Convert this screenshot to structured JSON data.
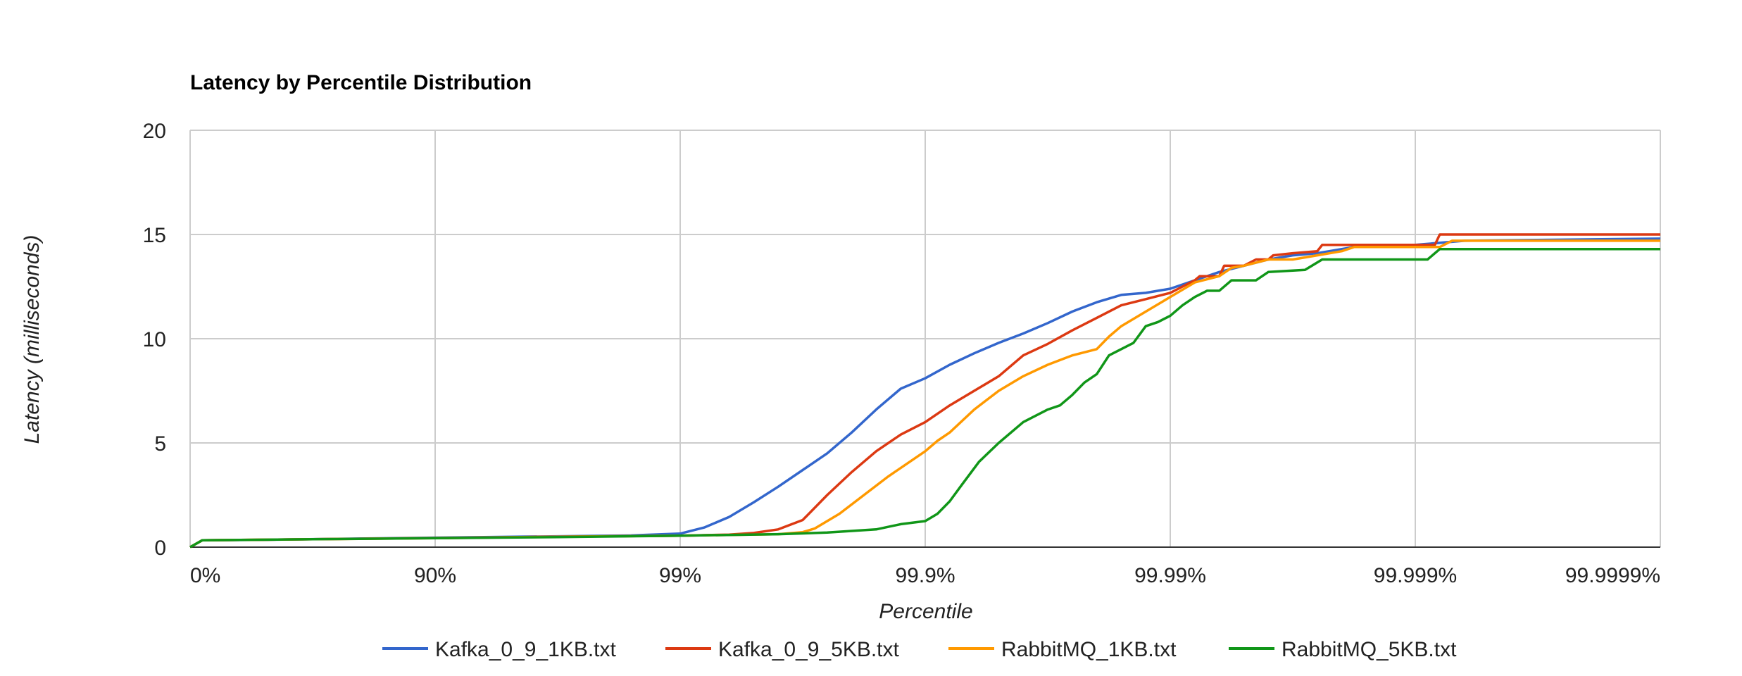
{
  "chart_data": {
    "type": "line",
    "title": "Latency by Percentile Distribution",
    "xlabel": "Percentile",
    "ylabel": "Latency (milliseconds)",
    "x_scale": "percentile (log of 1/(1-p))",
    "x_ticks": [
      "0%",
      "90%",
      "99%",
      "99.9%",
      "99.99%",
      "99.999%",
      "99.9999%"
    ],
    "y_ticks": [
      "0",
      "5",
      "10",
      "15",
      "20"
    ],
    "ylim": [
      0,
      20
    ],
    "grid": true,
    "legend_position": "bottom",
    "series": [
      {
        "name": "Kafka_0_9_1KB.txt",
        "color": "#3366cc",
        "points": [
          [
            0,
            0
          ],
          [
            0.05,
            0.33
          ],
          [
            0.3,
            0.35
          ],
          [
            0.6,
            0.4
          ],
          [
            0.9,
            0.44
          ],
          [
            1.2,
            0.48
          ],
          [
            1.5,
            0.52
          ],
          [
            1.8,
            0.56
          ],
          [
            2.0,
            0.65
          ],
          [
            2.1,
            0.95
          ],
          [
            2.2,
            1.45
          ],
          [
            2.3,
            2.15
          ],
          [
            2.4,
            2.9
          ],
          [
            2.5,
            3.7
          ],
          [
            2.6,
            4.5
          ],
          [
            2.7,
            5.5
          ],
          [
            2.8,
            6.6
          ],
          [
            2.9,
            7.6
          ],
          [
            3.0,
            8.1
          ],
          [
            3.1,
            8.75
          ],
          [
            3.2,
            9.3
          ],
          [
            3.3,
            9.8
          ],
          [
            3.4,
            10.25
          ],
          [
            3.5,
            10.75
          ],
          [
            3.6,
            11.3
          ],
          [
            3.7,
            11.75
          ],
          [
            3.8,
            12.1
          ],
          [
            3.9,
            12.2
          ],
          [
            4.0,
            12.4
          ],
          [
            4.1,
            12.8
          ],
          [
            4.2,
            13.2
          ],
          [
            4.3,
            13.5
          ],
          [
            4.4,
            13.8
          ],
          [
            4.5,
            14.0
          ],
          [
            4.6,
            14.1
          ],
          [
            4.7,
            14.3
          ],
          [
            4.8,
            14.5
          ],
          [
            5.0,
            14.5
          ],
          [
            5.2,
            14.7
          ],
          [
            6.0,
            14.8
          ]
        ]
      },
      {
        "name": "Kafka_0_9_5KB.txt",
        "color": "#dc3912",
        "points": [
          [
            0,
            0
          ],
          [
            0.05,
            0.33
          ],
          [
            0.5,
            0.38
          ],
          [
            1.0,
            0.44
          ],
          [
            1.5,
            0.5
          ],
          [
            2.0,
            0.55
          ],
          [
            2.2,
            0.6
          ],
          [
            2.3,
            0.68
          ],
          [
            2.4,
            0.85
          ],
          [
            2.5,
            1.3
          ],
          [
            2.6,
            2.5
          ],
          [
            2.7,
            3.6
          ],
          [
            2.8,
            4.6
          ],
          [
            2.9,
            5.4
          ],
          [
            3.0,
            6.0
          ],
          [
            3.1,
            6.8
          ],
          [
            3.2,
            7.5
          ],
          [
            3.3,
            8.2
          ],
          [
            3.4,
            9.2
          ],
          [
            3.5,
            9.75
          ],
          [
            3.6,
            10.4
          ],
          [
            3.7,
            11.0
          ],
          [
            3.8,
            11.6
          ],
          [
            3.9,
            11.9
          ],
          [
            4.0,
            12.2
          ],
          [
            4.05,
            12.5
          ],
          [
            4.1,
            12.8
          ],
          [
            4.12,
            13.0
          ],
          [
            4.2,
            13.0
          ],
          [
            4.22,
            13.5
          ],
          [
            4.3,
            13.5
          ],
          [
            4.35,
            13.8
          ],
          [
            4.4,
            13.8
          ],
          [
            4.42,
            14.0
          ],
          [
            4.5,
            14.1
          ],
          [
            4.6,
            14.2
          ],
          [
            4.62,
            14.5
          ],
          [
            5.08,
            14.5
          ],
          [
            5.1,
            15.0
          ],
          [
            6.0,
            15.0
          ]
        ]
      },
      {
        "name": "RabbitMQ_1KB.txt",
        "color": "#ff9900",
        "points": [
          [
            0,
            0
          ],
          [
            0.05,
            0.33
          ],
          [
            0.5,
            0.38
          ],
          [
            1.0,
            0.43
          ],
          [
            1.5,
            0.5
          ],
          [
            2.0,
            0.55
          ],
          [
            2.4,
            0.62
          ],
          [
            2.5,
            0.72
          ],
          [
            2.55,
            0.9
          ],
          [
            2.65,
            1.6
          ],
          [
            2.75,
            2.5
          ],
          [
            2.85,
            3.4
          ],
          [
            2.95,
            4.2
          ],
          [
            3.0,
            4.6
          ],
          [
            3.05,
            5.1
          ],
          [
            3.1,
            5.5
          ],
          [
            3.2,
            6.6
          ],
          [
            3.3,
            7.5
          ],
          [
            3.4,
            8.2
          ],
          [
            3.5,
            8.75
          ],
          [
            3.6,
            9.2
          ],
          [
            3.7,
            9.5
          ],
          [
            3.75,
            10.1
          ],
          [
            3.8,
            10.6
          ],
          [
            3.9,
            11.3
          ],
          [
            4.0,
            12.0
          ],
          [
            4.1,
            12.7
          ],
          [
            4.2,
            13.0
          ],
          [
            4.25,
            13.4
          ],
          [
            4.3,
            13.5
          ],
          [
            4.4,
            13.8
          ],
          [
            4.5,
            13.8
          ],
          [
            4.6,
            14.0
          ],
          [
            4.7,
            14.2
          ],
          [
            4.75,
            14.4
          ],
          [
            5.0,
            14.4
          ],
          [
            5.1,
            14.4
          ],
          [
            5.15,
            14.7
          ],
          [
            6.0,
            14.7
          ]
        ]
      },
      {
        "name": "RabbitMQ_5KB.txt",
        "color": "#109618",
        "points": [
          [
            0,
            0
          ],
          [
            0.05,
            0.33
          ],
          [
            0.5,
            0.38
          ],
          [
            1.0,
            0.43
          ],
          [
            1.5,
            0.48
          ],
          [
            2.0,
            0.55
          ],
          [
            2.4,
            0.62
          ],
          [
            2.6,
            0.7
          ],
          [
            2.8,
            0.85
          ],
          [
            2.9,
            1.1
          ],
          [
            3.0,
            1.25
          ],
          [
            3.05,
            1.6
          ],
          [
            3.1,
            2.2
          ],
          [
            3.15,
            3.0
          ],
          [
            3.22,
            4.1
          ],
          [
            3.3,
            5.0
          ],
          [
            3.4,
            6.0
          ],
          [
            3.5,
            6.6
          ],
          [
            3.55,
            6.8
          ],
          [
            3.6,
            7.3
          ],
          [
            3.65,
            7.9
          ],
          [
            3.7,
            8.3
          ],
          [
            3.75,
            9.2
          ],
          [
            3.85,
            9.8
          ],
          [
            3.9,
            10.6
          ],
          [
            3.95,
            10.8
          ],
          [
            4.0,
            11.1
          ],
          [
            4.05,
            11.6
          ],
          [
            4.1,
            12.0
          ],
          [
            4.15,
            12.3
          ],
          [
            4.2,
            12.3
          ],
          [
            4.25,
            12.8
          ],
          [
            4.35,
            12.8
          ],
          [
            4.4,
            13.2
          ],
          [
            4.55,
            13.3
          ],
          [
            4.62,
            13.8
          ],
          [
            5.0,
            13.8
          ],
          [
            5.05,
            13.8
          ],
          [
            5.1,
            14.3
          ],
          [
            6.0,
            14.3
          ]
        ]
      }
    ]
  }
}
